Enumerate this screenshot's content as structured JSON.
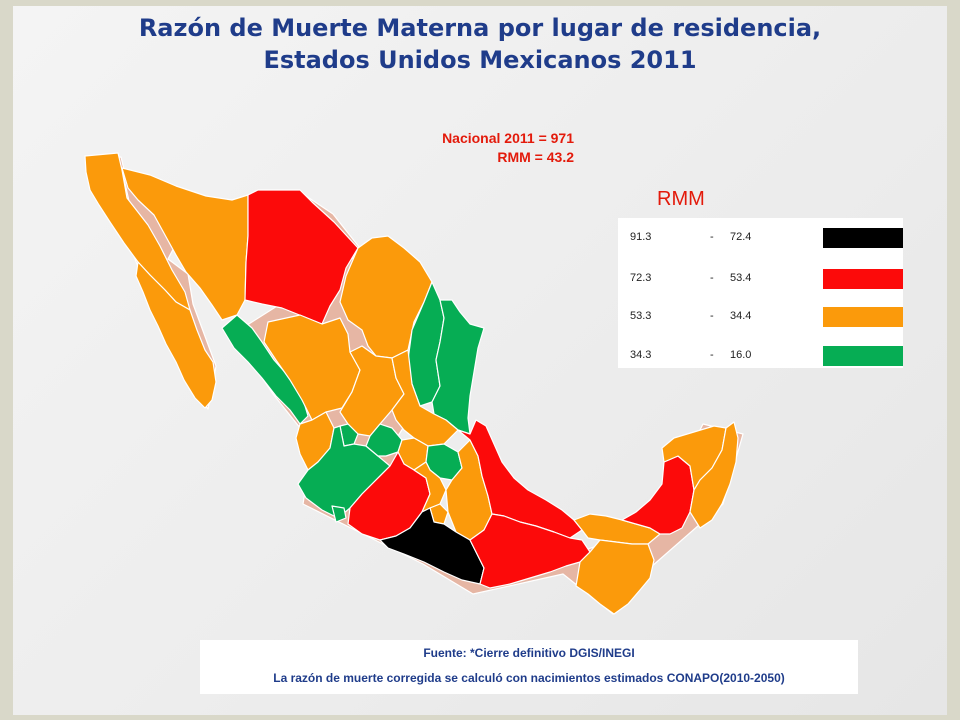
{
  "slide": {
    "title_line1": "Razón de Muerte Materna por lugar de residencia,",
    "title_line2": "Estados Unidos Mexicanos 2011",
    "national_line1": "Nacional  2011 = 971",
    "national_line2": "RMM = 43.2"
  },
  "legend": {
    "title": "RMM",
    "classes": [
      {
        "high": "91.3",
        "sep": "-",
        "low": "72.4",
        "color": "#000000"
      },
      {
        "high": "72.3",
        "sep": "-",
        "low": "53.4",
        "color": "#fc0a0a"
      },
      {
        "high": "53.3",
        "sep": "-",
        "low": "34.4",
        "color": "#fb9a0b"
      },
      {
        "high": "34.3",
        "sep": "-",
        "low": "16.0",
        "color": "#06ad54"
      }
    ]
  },
  "source": {
    "line1": "Fuente: *Cierre definitivo DGIS/INEGI",
    "line2": "La  razón de muerte  corregida se calculó con nacimientos estimados CONAPO(2010-2050)"
  },
  "map": {
    "colors": {
      "black": "#000000",
      "red": "#fc0a0a",
      "orange": "#fb9a0b",
      "green": "#06ad54",
      "shadow": "#e6b6a4"
    }
  }
}
